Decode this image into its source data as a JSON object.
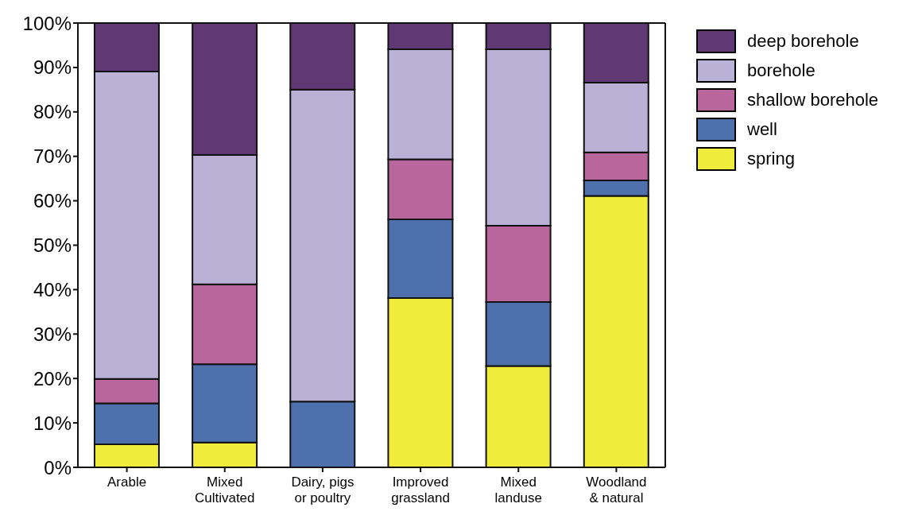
{
  "chart_data": {
    "type": "bar",
    "stacked": true,
    "categories": [
      "Arable",
      "Mixed\nCultivated",
      "Dairy, pigs\nor poultry",
      "Improved\ngrassland",
      "Mixed\nlanduse",
      "Woodland\n& natural"
    ],
    "series": [
      {
        "name": "spring",
        "color": "#f0ec3c",
        "values": [
          5.2,
          5.6,
          0,
          38.1,
          22.8,
          61.1
        ]
      },
      {
        "name": "well",
        "color": "#4e71ae",
        "values": [
          9.2,
          17.6,
          14.8,
          17.7,
          14.4,
          3.5
        ]
      },
      {
        "name": "shallow borehole",
        "color": "#b8669c",
        "values": [
          5.5,
          18.0,
          0,
          13.5,
          17.2,
          6.3
        ]
      },
      {
        "name": "borehole",
        "color": "#b9b1d6",
        "values": [
          69.2,
          29.1,
          70.2,
          24.8,
          39.7,
          15.7
        ]
      },
      {
        "name": "deep borehole",
        "color": "#5f3874",
        "values": [
          10.9,
          29.7,
          15.0,
          5.9,
          5.9,
          13.4
        ]
      }
    ],
    "ylim": [
      0,
      100
    ],
    "yticks": [
      {
        "value": 0,
        "label": "0%"
      },
      {
        "value": 10,
        "label": "10%"
      },
      {
        "value": 20,
        "label": "20%"
      },
      {
        "value": 30,
        "label": "30%"
      },
      {
        "value": 40,
        "label": "40%"
      },
      {
        "value": 50,
        "label": "50%"
      },
      {
        "value": 60,
        "label": "60%"
      },
      {
        "value": 70,
        "label": "70%"
      },
      {
        "value": 80,
        "label": "80%"
      },
      {
        "value": 90,
        "label": "90%"
      },
      {
        "value": 100,
        "label": "100%"
      }
    ],
    "legend": "top right"
  }
}
